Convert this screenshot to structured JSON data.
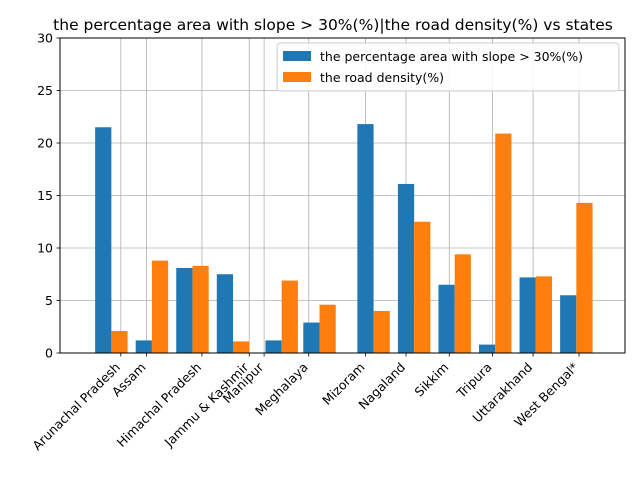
{
  "chart_data": {
    "type": "bar",
    "title": "the percentage area with slope > 30%(%)|the road density(%) vs states",
    "xlabel": "",
    "ylabel": "",
    "ylim": [
      0,
      30
    ],
    "yticks": [
      0,
      5,
      10,
      15,
      20,
      25,
      30
    ],
    "grid": true,
    "legend_position": "top-right",
    "categories": [
      "Arunachal Pradesh",
      "Assam",
      "Himachal Pradesh",
      "Jammu & Kashmir",
      "Manipur",
      "Meghalaya",
      "Mizoram",
      "Nagaland",
      "Sikkim",
      "Tripura",
      "Uttarakhand",
      "West Bengal*"
    ],
    "series": [
      {
        "name": "the percentage area with slope > 30%(%)",
        "color": "#1f77b4",
        "values": [
          21.5,
          1.2,
          8.1,
          7.5,
          1.2,
          2.9,
          21.8,
          16.1,
          6.5,
          0.8,
          7.2,
          5.5
        ],
        "x": [
          0.5,
          2,
          3.5,
          5,
          6.8,
          8.2,
          10.2,
          11.7,
          13.2,
          14.7,
          16.2,
          17.7
        ]
      },
      {
        "name": "the road density(%)",
        "color": "#ff7f0e",
        "values": [
          2.1,
          8.8,
          8.3,
          1.1,
          6.9,
          4.6,
          4.0,
          12.5,
          9.4,
          20.9,
          7.3,
          14.3
        ],
        "x": [
          1.1,
          2.6,
          4.1,
          5.6,
          7.4,
          8.8,
          10.8,
          12.3,
          13.8,
          15.3,
          16.8,
          18.3
        ]
      }
    ],
    "x_ticks": [
      1.15,
      2.1,
      4.15,
      5.9,
      6.45,
      8.1,
      10.2,
      11.7,
      13.3,
      14.9,
      16.4,
      18.1
    ],
    "xlim": [
      -1.1,
      19.8
    ]
  }
}
